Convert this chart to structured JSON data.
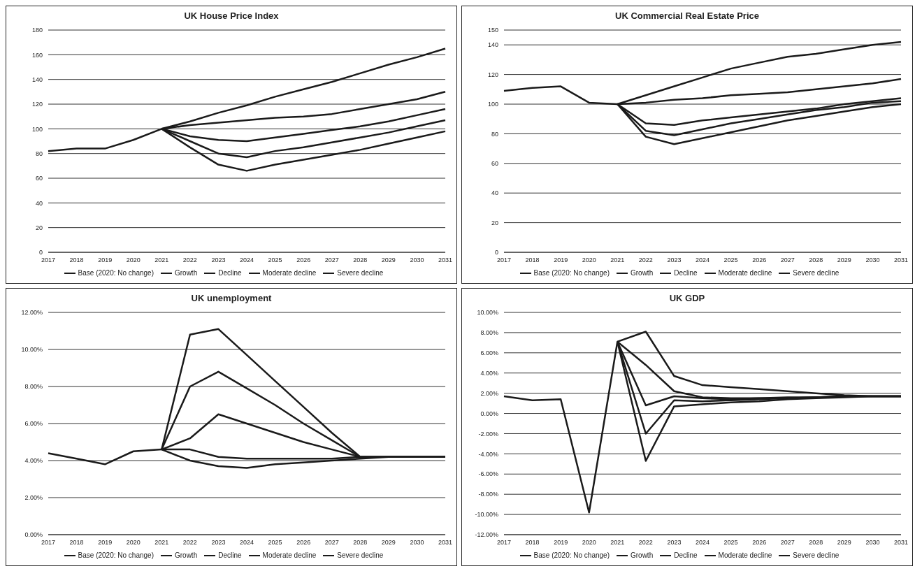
{
  "chart_data": [
    {
      "type": "line",
      "title": "UK House Price Index",
      "categories": [
        "2017",
        "2018",
        "2019",
        "2020",
        "2021",
        "2022",
        "2023",
        "2024",
        "2025",
        "2026",
        "2027",
        "2028",
        "2029",
        "2030",
        "2031"
      ],
      "ylim": [
        0,
        180
      ],
      "yticks": [
        0,
        20,
        40,
        60,
        80,
        100,
        120,
        140,
        160,
        180
      ],
      "grid": "y",
      "legend": "bottom",
      "marker": "none",
      "line_style": "solid",
      "series": [
        {
          "name": "Base (2020: No change)",
          "color": "#1a1a1a",
          "values": [
            82,
            84,
            84,
            91,
            100,
            103,
            105,
            107,
            109,
            110,
            112,
            116,
            120,
            124,
            130
          ]
        },
        {
          "name": "Growth",
          "color": "#1a1a1a",
          "values": [
            null,
            null,
            null,
            null,
            100,
            106,
            113,
            119,
            126,
            132,
            138,
            145,
            152,
            158,
            165
          ]
        },
        {
          "name": "Decline",
          "color": "#1a1a1a",
          "values": [
            null,
            null,
            null,
            null,
            100,
            90,
            80,
            77,
            82,
            85,
            89,
            93,
            97,
            102,
            107
          ]
        },
        {
          "name": "Moderate decline",
          "color": "#1a1a1a",
          "values": [
            null,
            null,
            null,
            null,
            100,
            94,
            91,
            90,
            93,
            96,
            99,
            102,
            106,
            111,
            116
          ]
        },
        {
          "name": "Severe decline",
          "color": "#1a1a1a",
          "values": [
            null,
            null,
            null,
            null,
            100,
            85,
            71,
            66,
            71,
            75,
            79,
            83,
            88,
            93,
            98
          ]
        }
      ]
    },
    {
      "type": "line",
      "title": "UK Commercial Real Estate Price",
      "categories": [
        "2017",
        "2018",
        "2019",
        "2020",
        "2021",
        "2022",
        "2023",
        "2024",
        "2025",
        "2026",
        "2027",
        "2028",
        "2029",
        "2030",
        "2031"
      ],
      "ylim": [
        0,
        150
      ],
      "yticks": [
        0,
        20,
        40,
        60,
        80,
        100,
        120,
        140,
        150
      ],
      "grid": "y",
      "legend": "bottom",
      "marker": "none",
      "line_style": "solid",
      "series": [
        {
          "name": "Base (2020: No change)",
          "color": "#1a1a1a",
          "values": [
            109,
            111,
            112,
            101,
            100,
            101,
            103,
            104,
            106,
            107,
            108,
            110,
            112,
            114,
            117
          ]
        },
        {
          "name": "Growth",
          "color": "#1a1a1a",
          "values": [
            null,
            null,
            null,
            null,
            100,
            106,
            112,
            118,
            124,
            128,
            132,
            134,
            137,
            140,
            142
          ]
        },
        {
          "name": "Decline",
          "color": "#1a1a1a",
          "values": [
            null,
            null,
            null,
            null,
            100,
            82,
            79,
            83,
            87,
            90,
            93,
            96,
            98,
            101,
            102
          ]
        },
        {
          "name": "Moderate decline",
          "color": "#1a1a1a",
          "values": [
            null,
            null,
            null,
            null,
            100,
            87,
            86,
            89,
            91,
            93,
            95,
            97,
            100,
            102,
            104
          ]
        },
        {
          "name": "Severe decline",
          "color": "#1a1a1a",
          "values": [
            null,
            null,
            null,
            null,
            100,
            78,
            73,
            77,
            81,
            85,
            89,
            92,
            95,
            98,
            100
          ]
        }
      ]
    },
    {
      "type": "line",
      "title": "UK unemployment",
      "categories": [
        "2017",
        "2018",
        "2019",
        "2020",
        "2021",
        "2022",
        "2023",
        "2024",
        "2025",
        "2026",
        "2027",
        "2028",
        "2029",
        "2030",
        "2031"
      ],
      "ylim": [
        0,
        12
      ],
      "yticks": [
        {
          "value": 0,
          "label": "0.00%"
        },
        {
          "value": 2,
          "label": "2.00%"
        },
        {
          "value": 4,
          "label": "4.00%"
        },
        {
          "value": 6,
          "label": "6.00%"
        },
        {
          "value": 8,
          "label": "8.00%"
        },
        {
          "value": 10,
          "label": "10.00%"
        },
        {
          "value": 12,
          "label": "12.00%"
        }
      ],
      "grid": "y",
      "legend": "bottom",
      "marker": "none",
      "line_style": "solid",
      "series": [
        {
          "name": "Base (2020: No change)",
          "color": "#1a1a1a",
          "values": [
            4.4,
            4.1,
            3.8,
            4.5,
            4.6,
            4.6,
            4.2,
            4.1,
            4.1,
            4.1,
            4.1,
            4.2,
            4.2,
            4.2,
            4.2
          ]
        },
        {
          "name": "Growth",
          "color": "#1a1a1a",
          "values": [
            null,
            null,
            null,
            null,
            4.6,
            4.0,
            3.7,
            3.6,
            3.8,
            3.9,
            4.0,
            4.1,
            4.2,
            4.2,
            4.2
          ]
        },
        {
          "name": "Decline",
          "color": "#1a1a1a",
          "values": [
            null,
            null,
            null,
            null,
            4.6,
            8.0,
            8.8,
            7.9,
            7.0,
            6.0,
            5.1,
            4.2,
            4.2,
            4.2,
            4.2
          ]
        },
        {
          "name": "Moderate decline",
          "color": "#1a1a1a",
          "values": [
            null,
            null,
            null,
            null,
            4.6,
            5.2,
            6.5,
            6.0,
            5.5,
            5.0,
            4.6,
            4.2,
            4.2,
            4.2,
            4.2
          ]
        },
        {
          "name": "Severe decline",
          "color": "#1a1a1a",
          "values": [
            null,
            null,
            null,
            null,
            4.6,
            10.8,
            11.1,
            9.7,
            8.3,
            6.9,
            5.5,
            4.2,
            4.2,
            4.2,
            4.2
          ]
        }
      ]
    },
    {
      "type": "line",
      "title": "UK GDP",
      "categories": [
        "2017",
        "2018",
        "2019",
        "2020",
        "2021",
        "2022",
        "2023",
        "2024",
        "2025",
        "2026",
        "2027",
        "2028",
        "2029",
        "2030",
        "2031"
      ],
      "ylim": [
        -12,
        10
      ],
      "yticks": [
        {
          "value": -12,
          "label": "-12.00%"
        },
        {
          "value": -10,
          "label": "-10.00%"
        },
        {
          "value": -8,
          "label": "-8.00%"
        },
        {
          "value": -6,
          "label": "-6.00%"
        },
        {
          "value": -4,
          "label": "-4.00%"
        },
        {
          "value": -2,
          "label": "-2.00%"
        },
        {
          "value": 0,
          "label": "0.00%"
        },
        {
          "value": 2,
          "label": "2.00%"
        },
        {
          "value": 4,
          "label": "4.00%"
        },
        {
          "value": 6,
          "label": "6.00%"
        },
        {
          "value": 8,
          "label": "8.00%"
        },
        {
          "value": 10,
          "label": "10.00%"
        }
      ],
      "grid": "y",
      "legend": "bottom",
      "marker": "none",
      "line_style": "solid",
      "series": [
        {
          "name": "Base (2020: No change)",
          "color": "#1a1a1a",
          "values": [
            1.7,
            1.3,
            1.4,
            -9.8,
            7.1,
            4.8,
            2.2,
            1.6,
            1.5,
            1.5,
            1.6,
            1.6,
            1.7,
            1.7,
            1.7
          ]
        },
        {
          "name": "Growth",
          "color": "#1a1a1a",
          "values": [
            null,
            null,
            null,
            null,
            7.1,
            8.1,
            3.7,
            2.8,
            2.6,
            2.4,
            2.2,
            2.0,
            1.8,
            1.7,
            1.7
          ]
        },
        {
          "name": "Decline",
          "color": "#1a1a1a",
          "values": [
            null,
            null,
            null,
            null,
            7.1,
            -2.0,
            1.3,
            1.2,
            1.3,
            1.4,
            1.5,
            1.6,
            1.7,
            1.7,
            1.7
          ]
        },
        {
          "name": "Moderate decline",
          "color": "#1a1a1a",
          "values": [
            null,
            null,
            null,
            null,
            7.1,
            0.8,
            1.7,
            1.5,
            1.4,
            1.5,
            1.5,
            1.6,
            1.7,
            1.7,
            1.7
          ]
        },
        {
          "name": "Severe decline",
          "color": "#1a1a1a",
          "values": [
            null,
            null,
            null,
            null,
            7.1,
            -4.7,
            0.7,
            0.9,
            1.1,
            1.2,
            1.4,
            1.5,
            1.6,
            1.7,
            1.7
          ]
        }
      ]
    }
  ]
}
